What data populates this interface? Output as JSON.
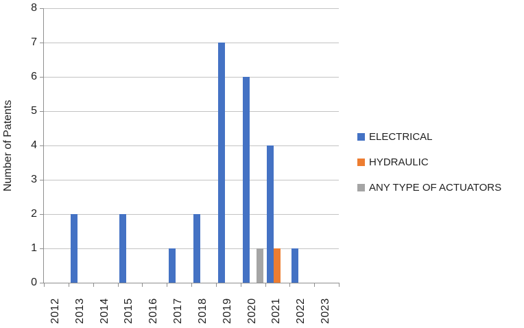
{
  "chart_data": {
    "type": "bar",
    "title": "",
    "xlabel": "",
    "ylabel": "Number of Patents",
    "categories": [
      "2012",
      "2013",
      "2014",
      "2015",
      "2016",
      "2017",
      "2018",
      "2019",
      "2020",
      "2021",
      "2022",
      "2023"
    ],
    "series": [
      {
        "name": "ELECTRICAL",
        "color": "#4472C4",
        "values": [
          0,
          2,
          0,
          2,
          0,
          1,
          2,
          7,
          6,
          4,
          1,
          0
        ]
      },
      {
        "name": "HYDRAULIC",
        "color": "#ED7D31",
        "values": [
          0,
          0,
          0,
          0,
          0,
          0,
          0,
          0,
          0,
          1,
          0,
          0
        ]
      },
      {
        "name": "ANY TYPE OF ACTUATORS",
        "color": "#A5A5A5",
        "values": [
          0,
          0,
          0,
          0,
          0,
          0,
          0,
          0,
          1,
          0,
          0,
          0
        ]
      }
    ],
    "ylim": [
      0,
      8
    ],
    "yticks": [
      0,
      1,
      2,
      3,
      4,
      5,
      6,
      7,
      8
    ],
    "grid": true,
    "legend_position": "right",
    "axis_color": "#8e8e8e",
    "gridline_color": "#c3c3c3",
    "text_color": "#1f1f1f"
  }
}
